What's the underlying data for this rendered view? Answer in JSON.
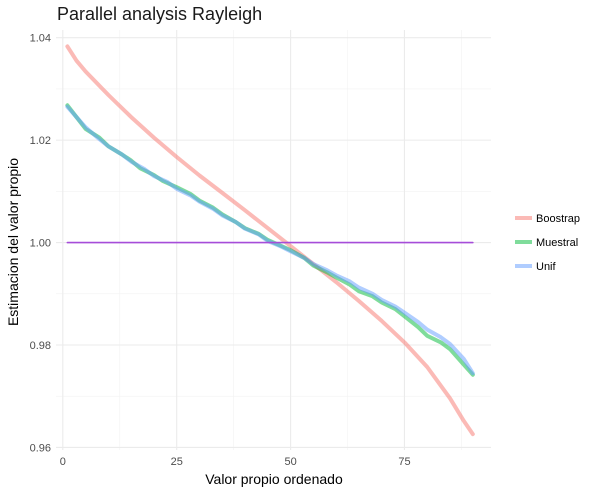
{
  "chart_data": {
    "type": "line",
    "title": "Parallel analysis Rayleigh",
    "xlabel": "Valor propio ordenado",
    "ylabel": "Estimacion del valor propio",
    "xlim": [
      -1.5,
      94
    ],
    "ylim": [
      0.9595,
      1.0415
    ],
    "x_ticks": [
      0,
      25,
      50,
      75
    ],
    "x_tick_labels": [
      "0",
      "25",
      "50",
      "75"
    ],
    "y_ticks": [
      0.96,
      0.98,
      1.0,
      1.02,
      1.04
    ],
    "y_tick_labels": [
      "0.96",
      "0.98",
      "1.00",
      "1.02",
      "1.04"
    ],
    "grid": true,
    "legend_position": "right",
    "series": [
      {
        "name": "Boostrap",
        "color": "#F8766D",
        "x": [
          1,
          3,
          5,
          10,
          15,
          20,
          25,
          30,
          35,
          40,
          45,
          50,
          55,
          60,
          65,
          70,
          75,
          80,
          85,
          88,
          90
        ],
        "y": [
          1.0383,
          1.0355,
          1.0334,
          1.0288,
          1.0245,
          1.0205,
          1.0167,
          1.0131,
          1.0097,
          1.0063,
          1.0028,
          0.9993,
          0.9958,
          0.9923,
          0.9886,
          0.9847,
          0.9805,
          0.9757,
          0.9696,
          0.9652,
          0.9626
        ]
      },
      {
        "name": "Muestral",
        "color": "#00BA38",
        "x": [
          1,
          3,
          5,
          8,
          10,
          13,
          15,
          17,
          20,
          22,
          25,
          28,
          30,
          33,
          35,
          38,
          40,
          43,
          45,
          48,
          50,
          53,
          55,
          58,
          60,
          63,
          65,
          68,
          70,
          73,
          75,
          78,
          80,
          83,
          85,
          88,
          90
        ],
        "y": [
          1.0268,
          1.0245,
          1.0222,
          1.0205,
          1.0188,
          1.0172,
          1.016,
          1.0145,
          1.0132,
          1.012,
          1.0108,
          1.0095,
          1.0082,
          1.0068,
          1.0055,
          1.004,
          1.0028,
          1.0017,
          1.0005,
          0.9993,
          0.9985,
          0.997,
          0.9955,
          0.9942,
          0.9932,
          0.9918,
          0.9905,
          0.9895,
          0.9883,
          0.987,
          0.9856,
          0.9835,
          0.9818,
          0.9805,
          0.9792,
          0.9762,
          0.9742
        ]
      },
      {
        "name": "Unif",
        "color": "#619CFF",
        "x": [
          1,
          3,
          5,
          8,
          10,
          13,
          15,
          18,
          20,
          23,
          25,
          28,
          30,
          33,
          35,
          38,
          40,
          43,
          45,
          48,
          50,
          53,
          55,
          58,
          60,
          63,
          65,
          68,
          70,
          73,
          75,
          78,
          80,
          83,
          85,
          88,
          90
        ],
        "y": [
          1.0265,
          1.0245,
          1.0225,
          1.0202,
          1.0188,
          1.0172,
          1.0158,
          1.0143,
          1.013,
          1.0118,
          1.0105,
          1.0092,
          1.008,
          1.0066,
          1.0053,
          1.004,
          1.0027,
          1.0016,
          1.0003,
          0.9992,
          0.9983,
          0.997,
          0.9958,
          0.9946,
          0.9936,
          0.9924,
          0.9912,
          0.99,
          0.9888,
          0.9875,
          0.9863,
          0.9845,
          0.983,
          0.9815,
          0.9802,
          0.9773,
          0.9745
        ]
      },
      {
        "name": "",
        "color": "#A64DD9",
        "x": [
          1,
          90
        ],
        "y": [
          1.0,
          1.0
        ]
      }
    ],
    "legend": [
      {
        "label": "Boostrap",
        "color": "#F8766D"
      },
      {
        "label": "Muestral",
        "color": "#00BA38"
      },
      {
        "label": "Unif",
        "color": "#619CFF"
      }
    ]
  }
}
